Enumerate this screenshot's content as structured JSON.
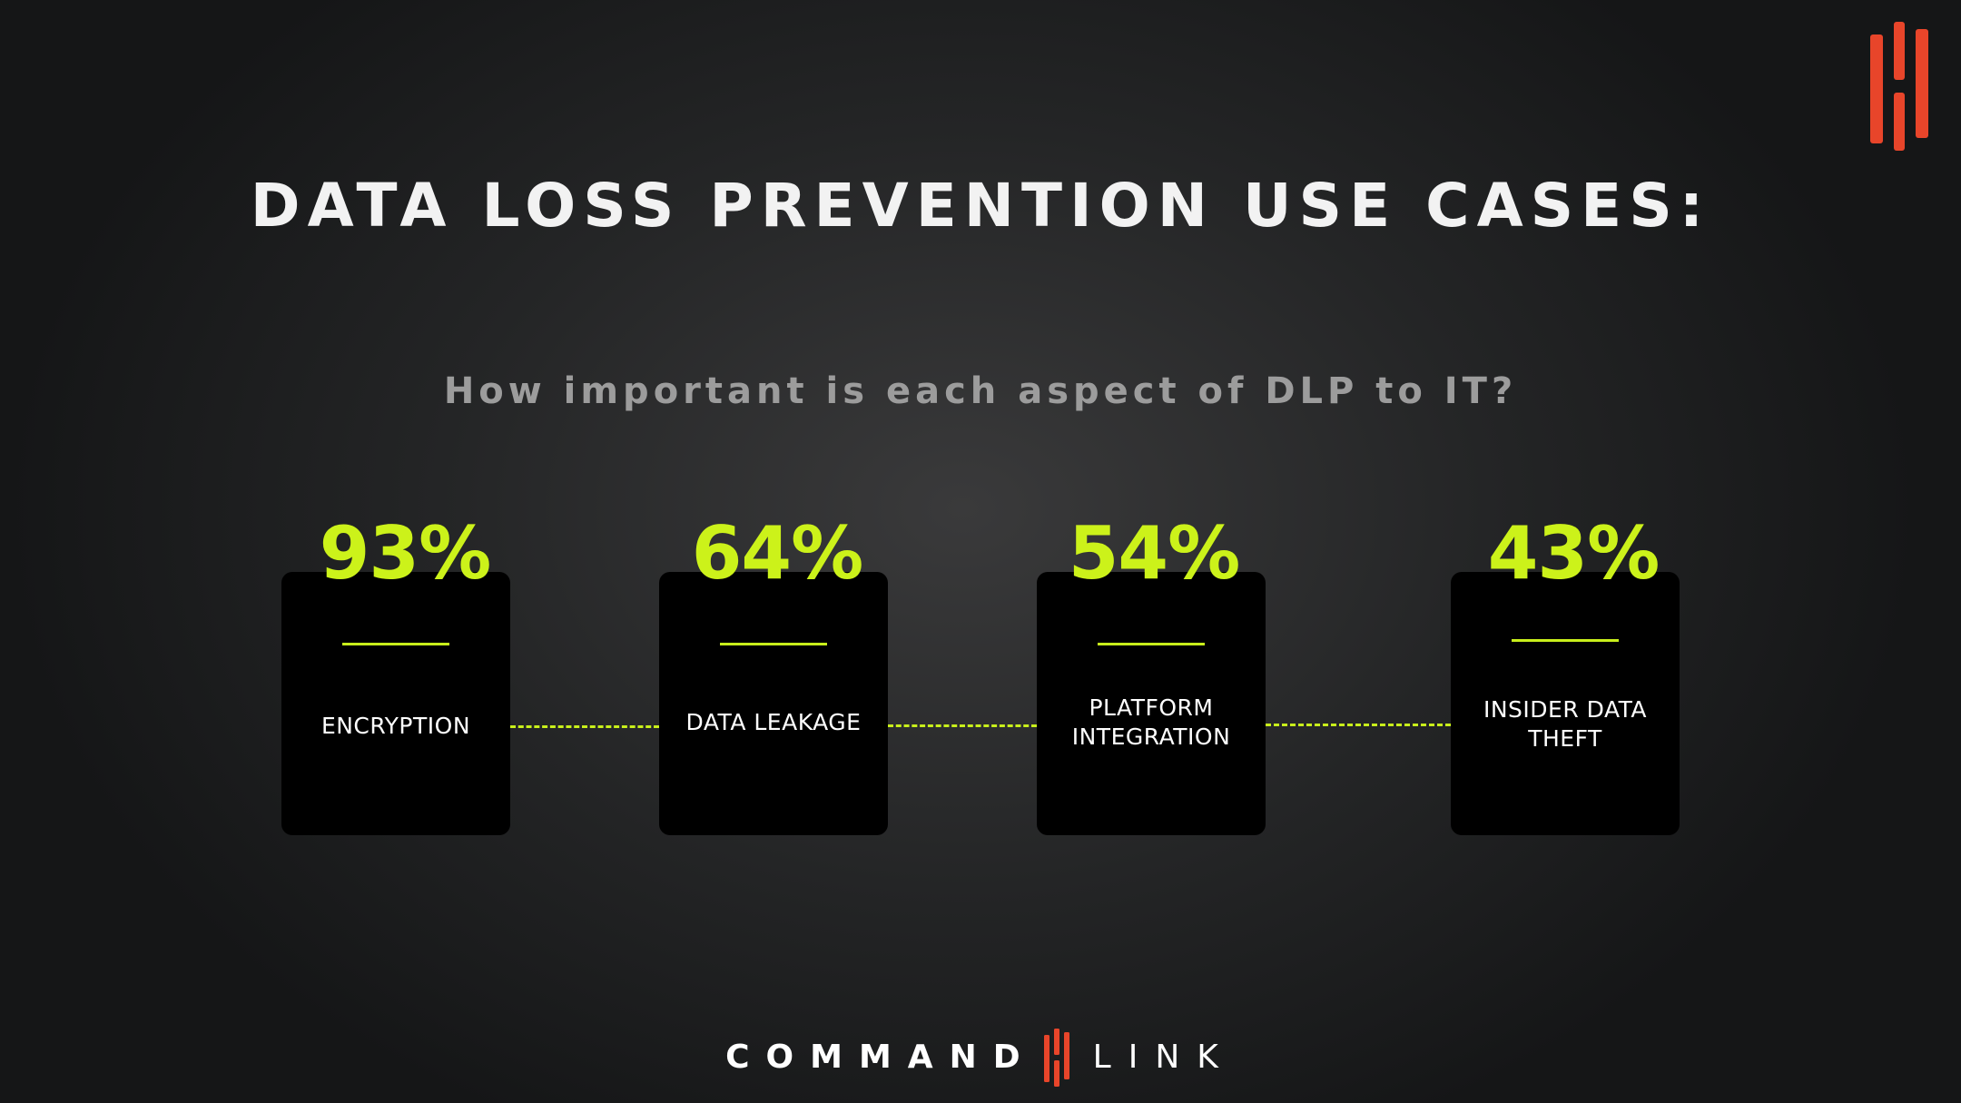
{
  "slide": {
    "title": "DATA LOSS PREVENTION USE CASES:",
    "subtitle": "How important is each aspect of DLP to IT?"
  },
  "stats": [
    {
      "value": "93%",
      "label": "ENCRYPTION",
      "percent": 93
    },
    {
      "value": "64%",
      "label": "DATA LEAKAGE",
      "percent": 64
    },
    {
      "value": "54%",
      "label_line1": "PLATFORM",
      "label_line2": "INTEGRATION",
      "percent": 54
    },
    {
      "value": "43%",
      "label_line1": "INSIDER DATA",
      "label_line2": "THEFT",
      "percent": 43
    }
  ],
  "brand": {
    "word1": "COMMAND",
    "word2": "LINK",
    "logo_icon": "commandlink-logo-icon"
  },
  "colors": {
    "accent": "#ccf21a",
    "brand_orange": "#e8452a",
    "card_background": "#000000",
    "title": "#f2f2f2",
    "subtitle": "#9c9c9c"
  }
}
